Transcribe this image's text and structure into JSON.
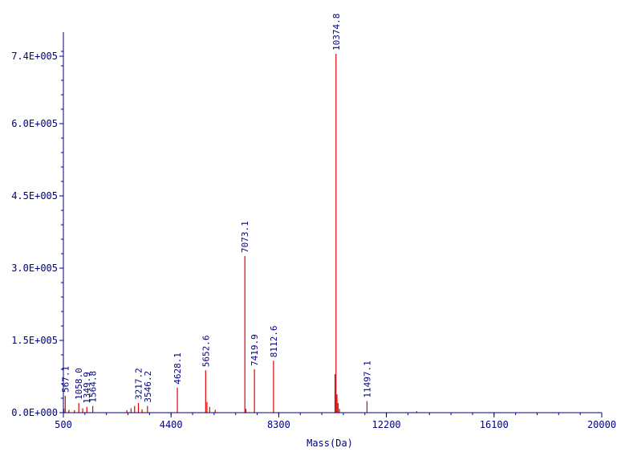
{
  "chart_data": {
    "type": "bar",
    "xlabel": "Mass(Da)",
    "ylabel": "",
    "xlim": [
      500,
      20000
    ],
    "ylim": [
      0,
      760000
    ],
    "x_ticks": [
      500,
      4400,
      8300,
      12200,
      16100,
      20000
    ],
    "x_tick_labels": [
      "500",
      "4400",
      "8300",
      "12200",
      "16100",
      "20000"
    ],
    "y_ticks": [
      0,
      150000,
      300000,
      450000,
      600000,
      740000
    ],
    "y_tick_labels": [
      "0.0E+000",
      "1.5E+005",
      "3.0E+005",
      "4.5E+005",
      "6.0E+005",
      "7.4E+005"
    ],
    "labeled_peaks": [
      {
        "mass": 567.1,
        "intensity": 35000,
        "label": "567.1"
      },
      {
        "mass": 1058.0,
        "intensity": 20000,
        "label": "1058.0"
      },
      {
        "mass": 1349.9,
        "intensity": 12000,
        "label": "1349.9"
      },
      {
        "mass": 1564.8,
        "intensity": 14000,
        "label": "1564.8"
      },
      {
        "mass": 3217.2,
        "intensity": 20000,
        "label": "3217.2"
      },
      {
        "mass": 3546.2,
        "intensity": 14000,
        "label": "3546.2"
      },
      {
        "mass": 4628.1,
        "intensity": 52000,
        "label": "4628.1"
      },
      {
        "mass": 5652.6,
        "intensity": 88000,
        "label": "5652.6"
      },
      {
        "mass": 7073.1,
        "intensity": 325000,
        "label": "7073.1"
      },
      {
        "mass": 7419.9,
        "intensity": 90000,
        "label": "7419.9"
      },
      {
        "mass": 8112.6,
        "intensity": 108000,
        "label": "8112.6"
      },
      {
        "mass": 10374.8,
        "intensity": 745000,
        "label": "10374.8"
      },
      {
        "mass": 11497.1,
        "intensity": 24000,
        "label": "11497.1"
      }
    ],
    "minor_peaks": [
      {
        "mass": 520,
        "intensity": 8000
      },
      {
        "mass": 700,
        "intensity": 6000
      },
      {
        "mass": 900,
        "intensity": 5000
      },
      {
        "mass": 1200,
        "intensity": 9000
      },
      {
        "mass": 2800,
        "intensity": 5000
      },
      {
        "mass": 2950,
        "intensity": 9000
      },
      {
        "mass": 3080,
        "intensity": 14000
      },
      {
        "mass": 3350,
        "intensity": 7000
      },
      {
        "mass": 5700,
        "intensity": 22000
      },
      {
        "mass": 5800,
        "intensity": 12000
      },
      {
        "mass": 6000,
        "intensity": 6000
      },
      {
        "mass": 7110,
        "intensity": 8000
      },
      {
        "mass": 10340,
        "intensity": 80000
      },
      {
        "mass": 10410,
        "intensity": 38000
      },
      {
        "mass": 10450,
        "intensity": 20000
      },
      {
        "mass": 10500,
        "intensity": 8000
      },
      {
        "mass": 13300,
        "intensity": 3000
      }
    ],
    "colors": {
      "axis": "#000080",
      "peak": "#e00000"
    }
  }
}
